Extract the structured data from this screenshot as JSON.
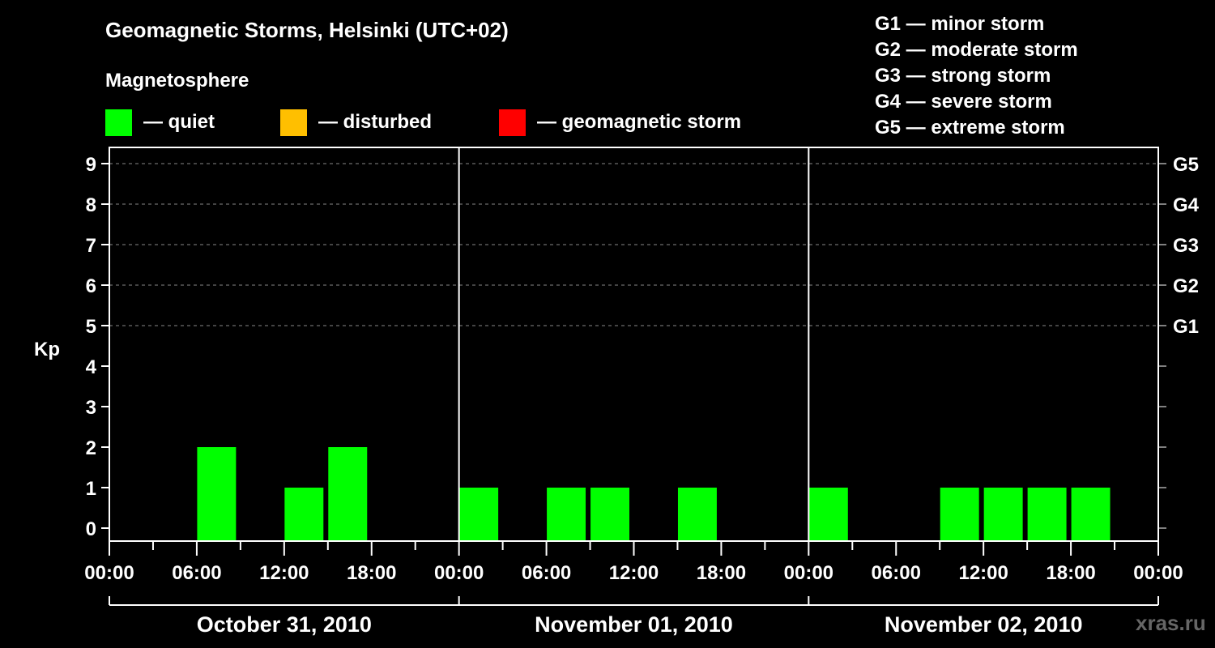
{
  "title": "Geomagnetic Storms, Helsinki (UTC+02)",
  "subtitle": "Magnetosphere",
  "legend": [
    {
      "label": "— quiet",
      "color": "#00ff00"
    },
    {
      "label": "— disturbed",
      "color": "#ffbf00"
    },
    {
      "label": "— geomagnetic storm",
      "color": "#ff0000"
    }
  ],
  "g_legend": [
    "G1 — minor storm",
    "G2 — moderate storm",
    "G3 — strong storm",
    "G4 — severe storm",
    "G5 — extreme storm"
  ],
  "watermark": "xras.ru",
  "chart_data": {
    "type": "bar",
    "ylabel": "Kp",
    "ylim": [
      0,
      9
    ],
    "y_ticks": [
      0,
      1,
      2,
      3,
      4,
      5,
      6,
      7,
      8,
      9
    ],
    "right_axis": [
      {
        "kp": 5,
        "label": "G1"
      },
      {
        "kp": 6,
        "label": "G2"
      },
      {
        "kp": 7,
        "label": "G3"
      },
      {
        "kp": 8,
        "label": "G4"
      },
      {
        "kp": 9,
        "label": "G5"
      }
    ],
    "x_tick_labels": [
      "00:00",
      "06:00",
      "12:00",
      "18:00",
      "00:00",
      "06:00",
      "12:00",
      "18:00",
      "00:00",
      "06:00",
      "12:00",
      "18:00",
      "00:00"
    ],
    "days": [
      "October 31, 2010",
      "November 01, 2010",
      "November 02, 2010"
    ],
    "grid": "dashed horizontal at Kp 5-9",
    "values": [
      [
        0,
        0,
        2,
        0,
        1,
        2,
        0,
        0
      ],
      [
        1,
        0,
        1,
        1,
        0,
        1,
        0,
        0
      ],
      [
        1,
        0,
        0,
        1,
        1,
        1,
        1,
        0
      ]
    ],
    "bar_colors": [
      [
        "#00ff00",
        "#00ff00",
        "#00ff00",
        "#00ff00",
        "#00ff00",
        "#00ff00",
        "#00ff00",
        "#00ff00"
      ],
      [
        "#00ff00",
        "#00ff00",
        "#00ff00",
        "#00ff00",
        "#00ff00",
        "#00ff00",
        "#00ff00",
        "#00ff00"
      ],
      [
        "#00ff00",
        "#00ff00",
        "#00ff00",
        "#00ff00",
        "#00ff00",
        "#00ff00",
        "#00ff00",
        "#00ff00"
      ]
    ]
  }
}
